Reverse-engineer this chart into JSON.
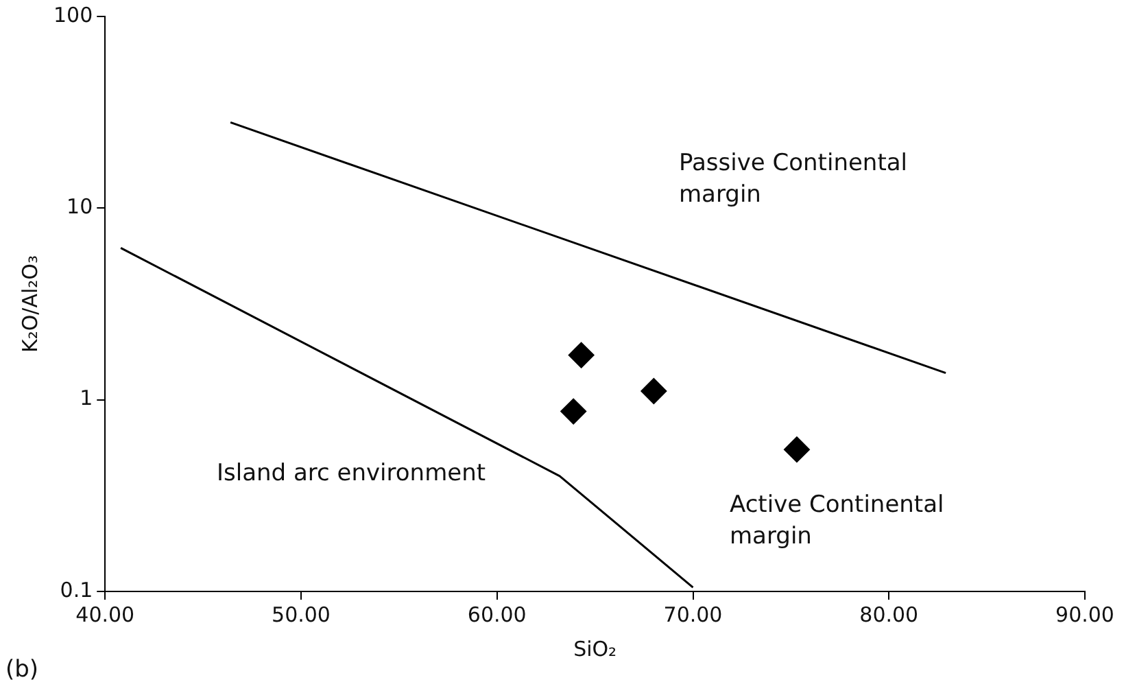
{
  "chart_data": {
    "type": "scatter",
    "xlabel": "SiO₂",
    "ylabel": "K₂O/Al₂O₃",
    "log": "y",
    "grid": false,
    "legend": false,
    "marker": "diamond",
    "xlim": [
      40,
      90
    ],
    "xticks": [
      {
        "value": 40,
        "label": "40.00"
      },
      {
        "value": 50,
        "label": "50.00"
      },
      {
        "value": 60,
        "label": "60.00"
      },
      {
        "value": 70,
        "label": "70.00"
      },
      {
        "value": 80,
        "label": "80.00"
      },
      {
        "value": 90,
        "label": "90.00"
      }
    ],
    "ylim": [
      0.1,
      100
    ],
    "yticks": [
      0.1,
      1,
      10,
      100
    ],
    "series": [
      {
        "color": "#000000",
        "x": [
          64.3,
          63.9,
          68.0,
          75.3
        ],
        "values": [
          1.71,
          0.87,
          1.11,
          0.55
        ]
      },
      {
        "type": "line",
        "marker": "none",
        "color": "#000000",
        "x": [
          46.4,
          82.9
        ],
        "values": [
          28,
          1.38
        ]
      },
      {
        "type": "line",
        "marker": "none",
        "color": "#000000",
        "x": [
          40.8,
          63.2,
          70.0
        ],
        "values": [
          6.2,
          0.4,
          0.105
        ]
      }
    ],
    "annotations": [
      "Passive Continental margin",
      "Island arc environment",
      "Active Continental margin",
      "(b)"
    ]
  }
}
